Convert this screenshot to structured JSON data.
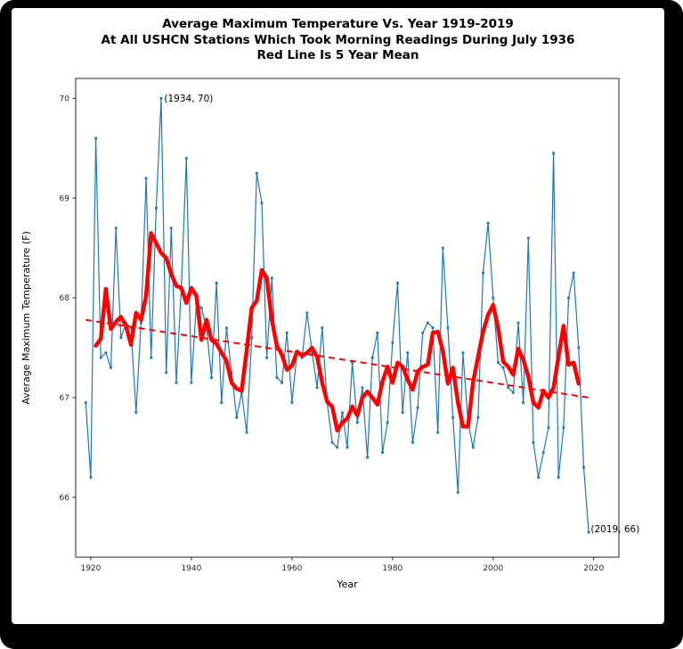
{
  "title": {
    "line1": "Average Maximum Temperature Vs. Year 1919-2019",
    "line2": "At All USHCN Stations Which Took Morning Readings During July 1936",
    "line3": "Red Line Is 5 Year Mean"
  },
  "colors": {
    "annual_line": "#1f77b4",
    "mean_line": "#ff0000",
    "trend_line": "#ff0000",
    "spine": "#262626",
    "frame_bg": "#000000",
    "card_bg": "#ffffff"
  },
  "chart_data": {
    "type": "line",
    "title": "Average Maximum Temperature Vs. Year 1919-2019 / At All USHCN Stations Which Took Morning Readings During July 1936 / Red Line Is 5 Year Mean",
    "xlabel": "Year",
    "ylabel": "Average Maximum Temperature (F)",
    "xlim": [
      1917,
      2025
    ],
    "ylim": [
      65.4,
      70.2
    ],
    "x_ticks": [
      1920,
      1940,
      1960,
      1980,
      2000,
      2020
    ],
    "y_ticks": [
      66,
      67,
      68,
      69,
      70
    ],
    "grid": false,
    "legend": "none",
    "series": [
      {
        "name": "annual_avg_max_temp",
        "style": "line_with_markers",
        "x": [
          1919,
          1920,
          1921,
          1922,
          1923,
          1924,
          1925,
          1926,
          1927,
          1928,
          1929,
          1930,
          1931,
          1932,
          1933,
          1934,
          1935,
          1936,
          1937,
          1938,
          1939,
          1940,
          1941,
          1942,
          1943,
          1944,
          1945,
          1946,
          1947,
          1948,
          1949,
          1950,
          1951,
          1952,
          1953,
          1954,
          1955,
          1956,
          1957,
          1958,
          1959,
          1960,
          1961,
          1962,
          1963,
          1964,
          1965,
          1966,
          1967,
          1968,
          1969,
          1970,
          1971,
          1972,
          1973,
          1974,
          1975,
          1976,
          1977,
          1978,
          1979,
          1980,
          1981,
          1982,
          1983,
          1984,
          1985,
          1986,
          1987,
          1988,
          1989,
          1990,
          1991,
          1992,
          1993,
          1994,
          1995,
          1996,
          1997,
          1998,
          1999,
          2000,
          2001,
          2002,
          2003,
          2004,
          2005,
          2006,
          2007,
          2008,
          2009,
          2010,
          2011,
          2012,
          2013,
          2014,
          2015,
          2016,
          2017,
          2018,
          2019
        ],
        "values": [
          66.95,
          66.2,
          69.6,
          67.4,
          67.45,
          67.3,
          68.7,
          67.6,
          67.75,
          67.7,
          66.85,
          67.75,
          69.2,
          67.4,
          68.9,
          70,
          67.25,
          68.7,
          67.15,
          68.1,
          69.4,
          67.15,
          67.95,
          67.9,
          67.7,
          67.2,
          68.15,
          66.95,
          67.7,
          67.25,
          66.8,
          67.05,
          66.65,
          67.6,
          69.25,
          68.95,
          67.4,
          68.2,
          67.2,
          67.15,
          67.65,
          66.95,
          67.45,
          67.4,
          67.85,
          67.45,
          67.1,
          67.7,
          66.95,
          66.55,
          66.5,
          66.85,
          66.5,
          67.35,
          66.75,
          67.1,
          66.4,
          67.4,
          67.65,
          66.45,
          66.75,
          67.55,
          68.15,
          66.85,
          67.45,
          66.55,
          66.9,
          67.65,
          67.75,
          67.7,
          66.65,
          68.5,
          67.7,
          66.8,
          66.05,
          67.45,
          66.75,
          66.5,
          66.8,
          68.25,
          68.75,
          68.0,
          67.35,
          67.3,
          67.1,
          67.05,
          67.75,
          66.95,
          68.6,
          66.55,
          66.2,
          66.45,
          66.7,
          69.45,
          66.2,
          66.7,
          68.0,
          68.25,
          67.5,
          66.3,
          65.65
        ]
      },
      {
        "name": "five_year_mean",
        "style": "thick_line",
        "derived": "centered_5_year_mean_of_annual_avg_max_temp"
      },
      {
        "name": "linear_trend",
        "style": "dashed_line",
        "x": [
          1919,
          2019
        ],
        "values": [
          67.78,
          67.0
        ]
      }
    ],
    "annotations": [
      {
        "text": "(1934, 70)",
        "x": 1934.6,
        "y": 70.0
      },
      {
        "text": "(2019, 66)",
        "x": 2019.4,
        "y": 65.68
      }
    ]
  }
}
